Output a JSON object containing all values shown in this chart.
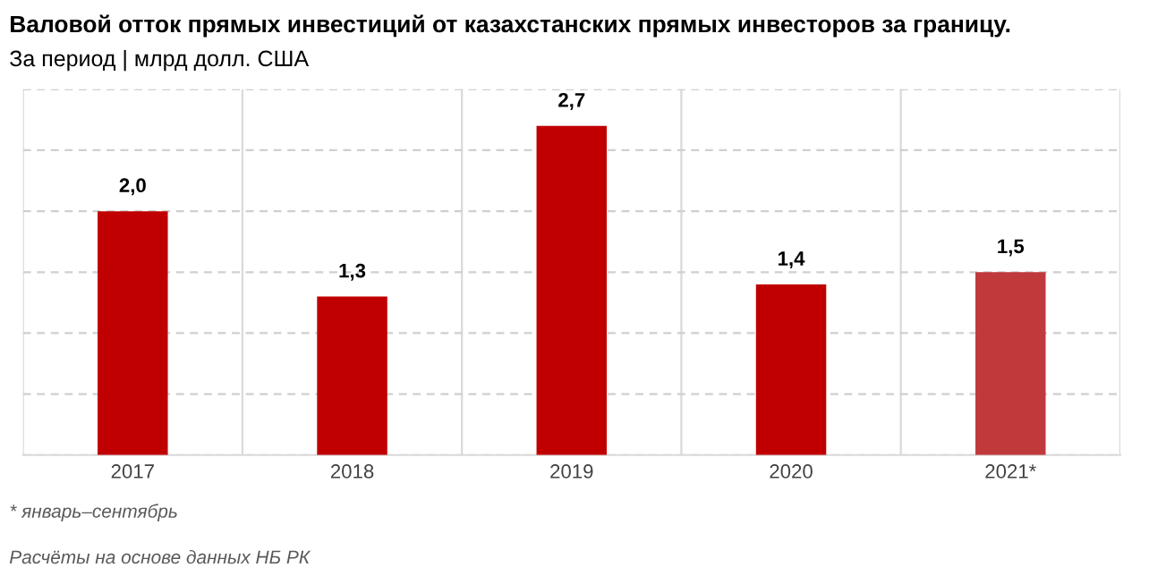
{
  "chart_data": {
    "type": "bar",
    "title": "Валовой отток прямых инвестиций от казахстанских прямых инвесторов за границу.",
    "subtitle": "За период | млрд долл. США",
    "categories": [
      "2017",
      "2018",
      "2019",
      "2020",
      "2021*"
    ],
    "values": [
      2.0,
      1.3,
      2.7,
      1.4,
      1.5
    ],
    "colors": [
      "#c00000",
      "#c00000",
      "#c00000",
      "#c00000",
      "#c0393b"
    ],
    "value_labels": [
      "2,0",
      "1,3",
      "2,7",
      "1,4",
      "1,5"
    ],
    "ylim": [
      0,
      3
    ],
    "yticks": [
      {
        "value": 0,
        "label": null
      },
      {
        "value": 0.5,
        "label": null
      },
      {
        "value": 1,
        "label": null
      },
      {
        "value": 1.5,
        "label": null
      },
      {
        "value": 2,
        "label": null
      },
      {
        "value": 2.5,
        "label": null
      },
      {
        "value": 3,
        "label": null
      }
    ],
    "tick_labels": "x",
    "grid": true,
    "legend": false,
    "annotations": [
      "* январь–сентябрь",
      "Расчёты на основе данных НБ РК"
    ]
  }
}
